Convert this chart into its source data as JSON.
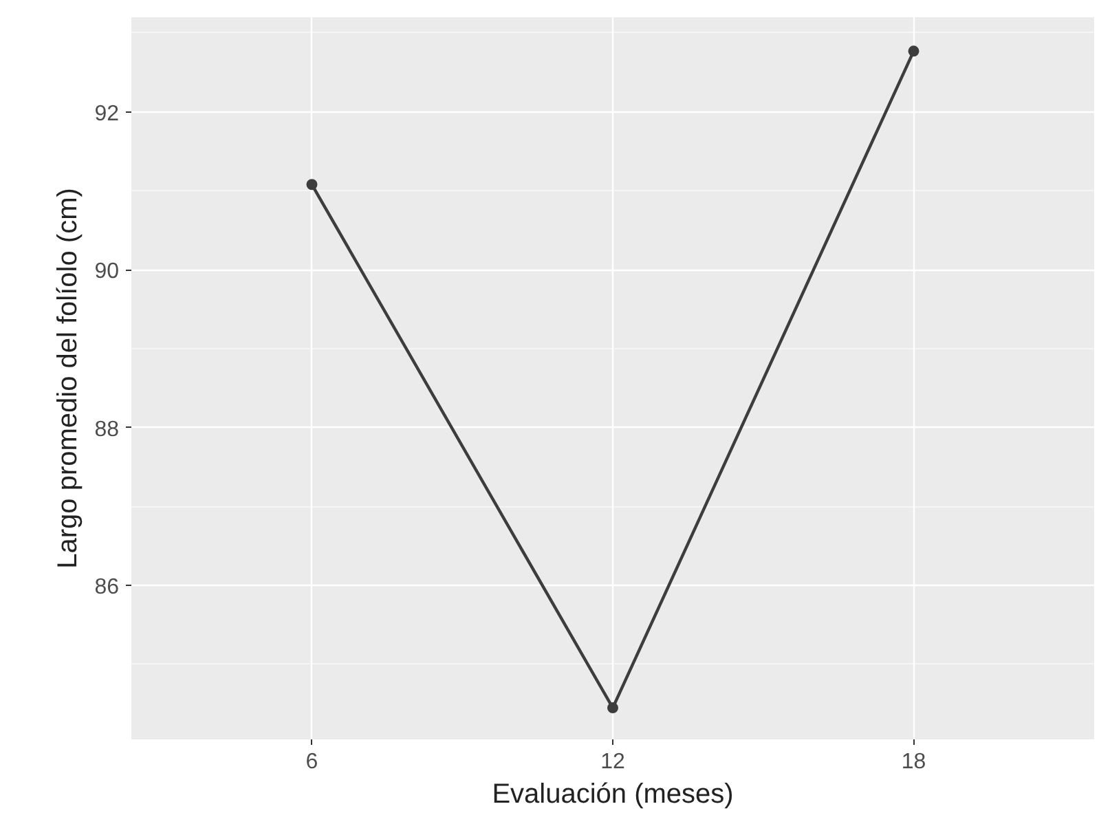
{
  "chart_data": {
    "type": "line",
    "xlabel": "Evaluación (meses)",
    "ylabel": "Largo promedio del folíolo (cm)",
    "x": [
      6,
      12,
      18
    ],
    "series": [
      {
        "color": "#3d3d3d",
        "values": [
          91.08,
          84.45,
          92.77
        ]
      }
    ],
    "xlim": [
      2.4,
      21.6
    ],
    "ylim": [
      84.05,
      93.2
    ],
    "xticks": [
      6,
      12,
      18
    ],
    "yticks": [
      86,
      88,
      90,
      92
    ],
    "grid": true,
    "marker": "circle",
    "line_style": "solid"
  }
}
